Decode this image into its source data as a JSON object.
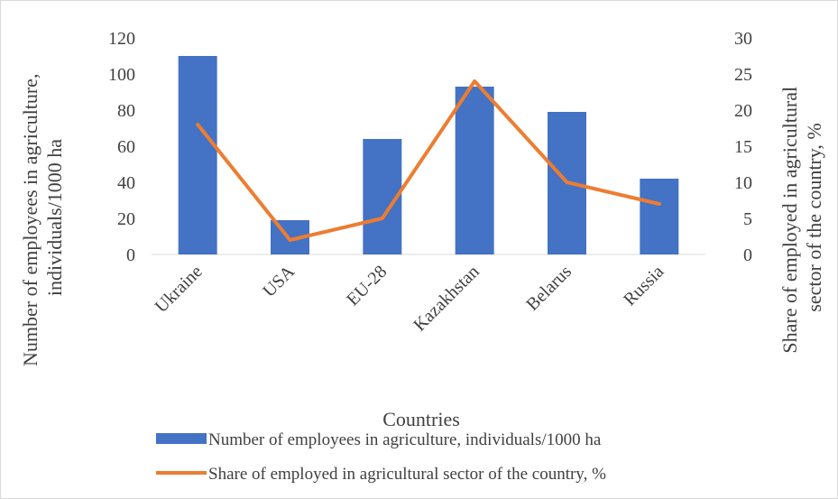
{
  "chart_data": {
    "type": "bar",
    "categories": [
      "Ukraine",
      "USA",
      "EU-28",
      "Kazakhstan",
      "Belarus",
      "Russia"
    ],
    "series": [
      {
        "name": "Number of employees in agriculture, individuals/1000 ha",
        "type": "bar",
        "axis": "left",
        "color": "#4472c4",
        "values": [
          110,
          19,
          64,
          93,
          79,
          42
        ]
      },
      {
        "name": "Share of employed in agricultural sector of the country, %",
        "type": "line",
        "axis": "right",
        "color": "#ed7d31",
        "values": [
          18,
          2,
          5,
          24,
          10,
          7
        ]
      }
    ],
    "xlabel": "Countries",
    "ylabel": "Number of employees in agriculture, individuals/1000 ha",
    "ylabel_lines": [
      "Number of employees in agriculture,",
      "individuals/1000 ha"
    ],
    "y2label": "Share of employed in agricultural sector of the country, %",
    "y2label_lines": [
      "Share of employed in agricultural",
      "sector of the country, %"
    ],
    "ylim": [
      0,
      120
    ],
    "y2lim": [
      0,
      30
    ],
    "yticks": [
      "0",
      "20",
      "40",
      "60",
      "80",
      "100",
      "120"
    ],
    "y2ticks": [
      "0",
      "5",
      "10",
      "15",
      "20",
      "25",
      "30"
    ],
    "grid": false,
    "legend": "bottom"
  }
}
